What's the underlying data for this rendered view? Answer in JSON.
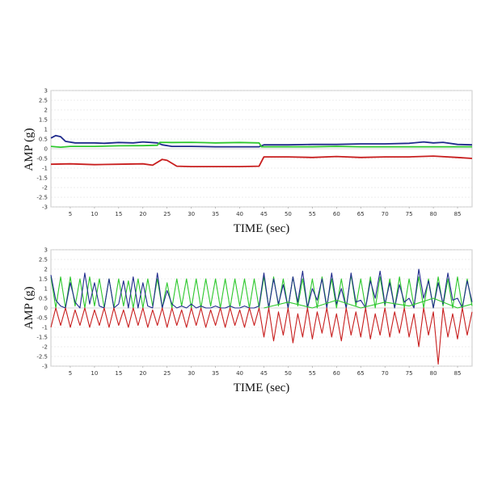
{
  "colors": {
    "blue": "#1f2a8c",
    "green": "#2ec82e",
    "red": "#c81e1e"
  },
  "chart_data": [
    {
      "type": "line",
      "title": "",
      "xlabel": "TIME (sec)",
      "ylabel": "AMP (g)",
      "xlim": [
        1,
        88
      ],
      "ylim": [
        -3,
        3
      ],
      "yticks": [
        "3",
        "2.5",
        "2",
        "1.5",
        "1",
        "0.5",
        "0",
        "-0.5",
        "-1",
        "-1.5",
        "-2",
        "-2.5",
        "-3"
      ],
      "xticks": [
        "5",
        "10",
        "15",
        "20",
        "25",
        "30",
        "35",
        "40",
        "45",
        "50",
        "55",
        "60",
        "65",
        "70",
        "75",
        "80",
        "85"
      ],
      "grid": true,
      "series": [
        {
          "color": "blue",
          "x": [
            1,
            2,
            3,
            4,
            6,
            8,
            10,
            12,
            15,
            18,
            20,
            23,
            24,
            26,
            30,
            35,
            40,
            44,
            45,
            50,
            55,
            60,
            65,
            70,
            75,
            78,
            80,
            82,
            85,
            88
          ],
          "y": [
            0.55,
            0.68,
            0.62,
            0.38,
            0.3,
            0.3,
            0.3,
            0.28,
            0.32,
            0.3,
            0.35,
            0.3,
            0.2,
            0.12,
            0.12,
            0.1,
            0.1,
            0.1,
            0.2,
            0.2,
            0.22,
            0.22,
            0.25,
            0.25,
            0.28,
            0.35,
            0.3,
            0.33,
            0.22,
            0.2
          ]
        },
        {
          "color": "green",
          "x": [
            1,
            3,
            5,
            10,
            15,
            20,
            23,
            23.5,
            26,
            30,
            35,
            40,
            44,
            44.5,
            50,
            55,
            60,
            65,
            70,
            75,
            80,
            85,
            88
          ],
          "y": [
            0.12,
            0.08,
            0.12,
            0.12,
            0.15,
            0.16,
            0.18,
            0.33,
            0.32,
            0.33,
            0.3,
            0.32,
            0.3,
            0.1,
            0.1,
            0.1,
            0.12,
            0.1,
            0.1,
            0.1,
            0.1,
            0.1,
            0.1
          ]
        },
        {
          "color": "red",
          "x": [
            1,
            5,
            10,
            15,
            20,
            22,
            24,
            25,
            27,
            30,
            35,
            40,
            44,
            45,
            50,
            55,
            60,
            65,
            70,
            75,
            80,
            85,
            88
          ],
          "y": [
            -0.8,
            -0.78,
            -0.82,
            -0.8,
            -0.78,
            -0.85,
            -0.55,
            -0.6,
            -0.9,
            -0.92,
            -0.92,
            -0.92,
            -0.9,
            -0.42,
            -0.42,
            -0.45,
            -0.4,
            -0.45,
            -0.42,
            -0.42,
            -0.38,
            -0.45,
            -0.5
          ]
        }
      ]
    },
    {
      "type": "line",
      "title": "",
      "xlabel": "TIME (sec)",
      "ylabel": "AMP (g)",
      "xlim": [
        1,
        88
      ],
      "ylim": [
        -3,
        3
      ],
      "yticks": [
        "3",
        "2.5",
        "2",
        "1.5",
        "1",
        "0.5",
        "0",
        "-0.5",
        "-1",
        "-1.5",
        "-2",
        "-2.5",
        "-3"
      ],
      "xticks": [
        "5",
        "10",
        "15",
        "20",
        "25",
        "30",
        "35",
        "40",
        "45",
        "50",
        "55",
        "60",
        "65",
        "70",
        "75",
        "80",
        "85"
      ],
      "grid": true,
      "series": [
        {
          "color": "green",
          "x": [
            1,
            2,
            3,
            4,
            5,
            6,
            7,
            8,
            9,
            10,
            11,
            12,
            13,
            14,
            15,
            16,
            17,
            18,
            19,
            20,
            21,
            22,
            23,
            24,
            25,
            26,
            27,
            28,
            29,
            30,
            31,
            32,
            33,
            34,
            35,
            36,
            37,
            38,
            39,
            40,
            41,
            42,
            43,
            44,
            45,
            46,
            47,
            48,
            49,
            50,
            51,
            52,
            53,
            54,
            55,
            56,
            57,
            58,
            59,
            60,
            61,
            62,
            63,
            64,
            65,
            66,
            67,
            68,
            69,
            70,
            71,
            72,
            73,
            74,
            75,
            76,
            77,
            78,
            79,
            80,
            81,
            82,
            83,
            84,
            85,
            86,
            87,
            88
          ],
          "y": [
            1.6,
            0.0,
            1.6,
            0.0,
            1.6,
            0.1,
            1.5,
            0.0,
            1.6,
            0.1,
            1.5,
            0.0,
            1.5,
            0.0,
            1.5,
            0.1,
            1.4,
            0.0,
            1.5,
            0.0,
            1.5,
            0.1,
            1.5,
            0.0,
            1.3,
            0.0,
            1.5,
            0.1,
            1.5,
            0.0,
            1.5,
            0.0,
            1.5,
            0.1,
            1.5,
            0.0,
            1.5,
            0.0,
            1.5,
            0.1,
            1.5,
            0.0,
            1.5,
            0.0,
            1.6,
            0.0,
            1.6,
            0.1,
            1.5,
            0.0,
            1.6,
            0.1,
            1.5,
            0.0,
            1.5,
            0.0,
            1.6,
            0.1,
            1.5,
            0.0,
            1.5,
            0.0,
            1.7,
            0.1,
            1.5,
            0.0,
            1.6,
            0.0,
            1.6,
            0.1,
            1.5,
            0.0,
            1.6,
            0.0,
            1.5,
            0.1,
            1.6,
            0.0,
            1.5,
            0.0,
            1.6,
            0.1,
            1.5,
            0.0,
            1.6,
            0.0,
            1.5,
            0.1
          ]
        },
        {
          "color": "blue",
          "x": [
            1,
            2,
            3,
            4,
            5,
            6,
            7,
            8,
            9,
            10,
            11,
            12,
            13,
            14,
            15,
            16,
            17,
            18,
            19,
            20,
            21,
            22,
            23,
            24,
            25,
            26,
            27,
            28,
            29,
            30,
            31,
            32,
            33,
            34,
            35,
            36,
            37,
            38,
            39,
            40,
            41,
            42,
            43,
            44,
            45,
            46,
            47,
            48,
            49,
            50,
            51,
            52,
            53,
            54,
            55,
            56,
            57,
            58,
            59,
            60,
            61,
            62,
            63,
            64,
            65,
            66,
            67,
            68,
            69,
            70,
            71,
            72,
            73,
            74,
            75,
            76,
            77,
            78,
            79,
            80,
            81,
            82,
            83,
            84,
            85,
            86,
            87,
            88
          ],
          "y": [
            1.7,
            0.4,
            0.1,
            0.0,
            1.3,
            0.3,
            0.0,
            1.8,
            0.2,
            1.3,
            0.1,
            0.0,
            1.5,
            0.0,
            0.2,
            1.4,
            0.0,
            1.6,
            0.0,
            1.3,
            0.1,
            0.0,
            1.8,
            0.0,
            0.9,
            0.2,
            0.0,
            0.1,
            0.0,
            0.2,
            0.0,
            0.1,
            0.0,
            0.0,
            0.1,
            0.0,
            0.0,
            0.1,
            0.0,
            0.0,
            0.1,
            0.0,
            0.0,
            0.1,
            1.8,
            0.0,
            1.5,
            0.2,
            1.2,
            0.0,
            1.6,
            0.3,
            1.9,
            0.0,
            1.0,
            0.4,
            1.5,
            0.0,
            1.8,
            0.2,
            1.0,
            0.0,
            1.8,
            0.3,
            0.4,
            0.0,
            1.4,
            0.5,
            1.9,
            0.2,
            1.3,
            0.0,
            1.2,
            0.3,
            0.5,
            0.0,
            2.0,
            0.5,
            1.4,
            0.0,
            1.3,
            0.2,
            1.8,
            0.4,
            0.5,
            0.0,
            1.4,
            0.3
          ]
        },
        {
          "color": "red",
          "x": [
            1,
            2,
            3,
            4,
            5,
            6,
            7,
            8,
            9,
            10,
            11,
            12,
            13,
            14,
            15,
            16,
            17,
            18,
            19,
            20,
            21,
            22,
            23,
            24,
            25,
            26,
            27,
            28,
            29,
            30,
            31,
            32,
            33,
            34,
            35,
            36,
            37,
            38,
            39,
            40,
            41,
            42,
            43,
            44,
            45,
            46,
            47,
            48,
            49,
            50,
            51,
            52,
            53,
            54,
            55,
            56,
            57,
            58,
            59,
            60,
            61,
            62,
            63,
            64,
            65,
            66,
            67,
            68,
            69,
            70,
            71,
            72,
            73,
            74,
            75,
            76,
            77,
            78,
            79,
            80,
            81,
            82,
            83,
            84,
            85,
            86,
            87,
            88
          ],
          "y": [
            -1.0,
            0.0,
            -0.9,
            0.0,
            -1.0,
            -0.1,
            -0.9,
            0.0,
            -1.0,
            -0.1,
            -0.9,
            0.0,
            -1.0,
            0.0,
            -0.9,
            -0.1,
            -1.0,
            0.0,
            -0.9,
            0.0,
            -1.0,
            -0.1,
            -0.9,
            0.0,
            -1.0,
            0.0,
            -0.9,
            -0.1,
            -1.0,
            0.0,
            -0.9,
            0.0,
            -1.0,
            -0.1,
            -0.9,
            0.0,
            -1.0,
            0.0,
            -0.9,
            -0.1,
            -1.0,
            0.0,
            -0.9,
            0.0,
            -1.5,
            0.0,
            -1.7,
            -0.2,
            -1.4,
            0.0,
            -1.8,
            -0.3,
            -1.5,
            0.0,
            -1.6,
            -0.2,
            -1.3,
            0.0,
            -1.5,
            -0.3,
            -1.7,
            0.0,
            -1.4,
            -0.2,
            -1.5,
            0.0,
            -1.6,
            -0.3,
            -1.4,
            0.0,
            -1.5,
            -0.2,
            -1.3,
            0.0,
            -1.5,
            -0.3,
            -2.0,
            0.0,
            -1.4,
            -0.2,
            -2.9,
            0.0,
            -1.5,
            -0.3,
            -1.6,
            0.0,
            -1.4,
            -0.2
          ]
        },
        {
          "color": "green",
          "x": [
            45,
            50,
            55,
            60,
            65,
            70,
            75,
            80,
            85,
            88
          ],
          "y": [
            0.0,
            0.3,
            0.0,
            0.4,
            0.0,
            0.3,
            0.1,
            0.5,
            0.0,
            0.2
          ]
        }
      ]
    }
  ]
}
